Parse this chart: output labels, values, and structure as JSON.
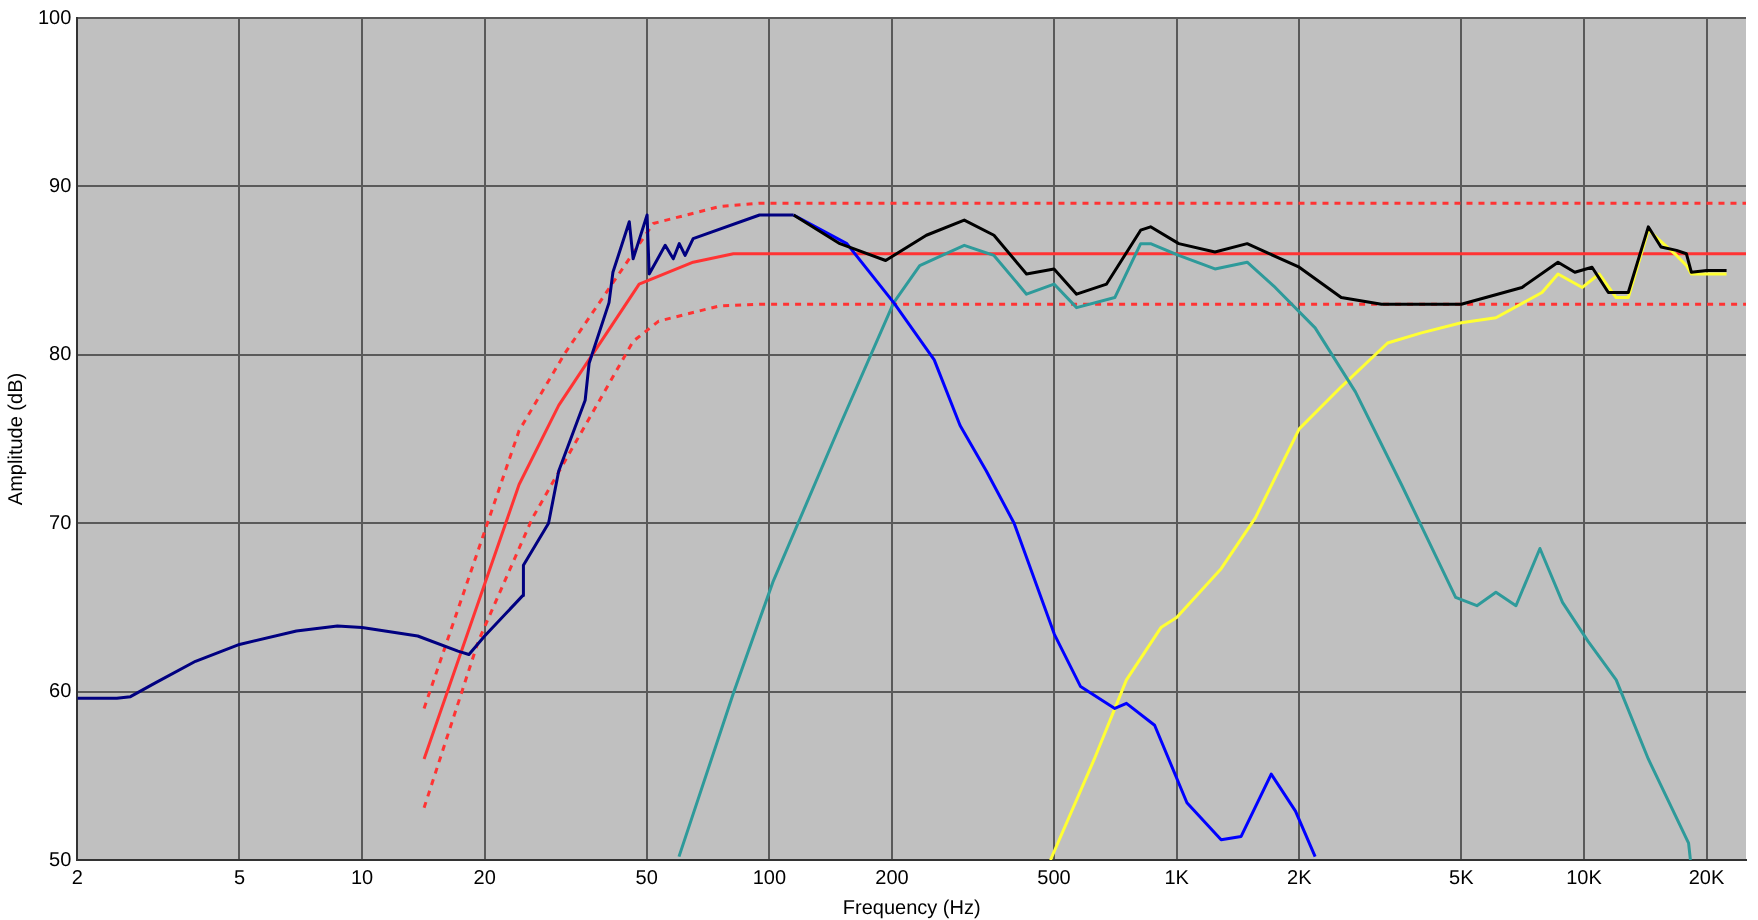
{
  "chart_data": {
    "type": "line",
    "xlabel": "Frequency (Hz)",
    "ylabel": "Amplitude (dB)",
    "log": "x",
    "grid": true,
    "marker": "none",
    "xlim": [
      2,
      25000
    ],
    "ylim": [
      50,
      100
    ],
    "xticks": [
      2,
      5,
      10,
      20,
      50,
      100,
      200,
      500,
      {
        "value": 1000,
        "label": "1K"
      },
      {
        "value": 2000,
        "label": "2K"
      },
      {
        "value": 5000,
        "label": "5K"
      },
      {
        "value": 10000,
        "label": "10K"
      },
      {
        "value": 20000,
        "label": "20K"
      }
    ],
    "yticks": [
      50,
      60,
      70,
      80,
      90,
      100
    ],
    "series": [
      {
        "color": "#000080",
        "line_style": "solid",
        "x": [
          2,
          2.5,
          2.7,
          3.1,
          3.9,
          5,
          6.9,
          8.7,
          10,
          13.7,
          17.2,
          18.3,
          20,
          24.8,
          24.9,
          28.7,
          30.4,
          35.3,
          36.1,
          40.4,
          41.3,
          45.3,
          46.3,
          50.1,
          50.7,
          55.5,
          58.1,
          60.1,
          62.1,
          65,
          94.6,
          114.7
        ],
        "values": [
          59.6,
          59.6,
          59.7,
          60.5,
          61.8,
          62.8,
          63.6,
          63.9,
          63.8,
          63.3,
          62.4,
          62.2,
          63.3,
          65.7,
          67.5,
          70.0,
          73.1,
          77.3,
          79.5,
          83.1,
          84.9,
          87.9,
          85.7,
          88.3,
          84.8,
          86.5,
          85.7,
          86.6,
          85.9,
          86.9,
          88.3,
          88.3
        ]
      },
      {
        "color": "#000000",
        "line_style": "solid",
        "x": [
          114.7,
          149,
          193,
          243,
          301,
          356,
          428,
          500,
          568,
          673,
          816,
          863,
          1012,
          1242,
          1490,
          2000,
          2536,
          3184,
          5000,
          7046,
          8636,
          9500,
          10470,
          11480,
          12850,
          14390,
          15460,
          16880,
          17850,
          18360,
          20000,
          22400
        ],
        "values": [
          88.3,
          86.6,
          85.6,
          87.1,
          88.0,
          87.1,
          84.8,
          85.1,
          83.6,
          84.2,
          87.4,
          87.6,
          86.6,
          86.1,
          86.6,
          85.2,
          83.4,
          83.0,
          83.0,
          84.0,
          85.5,
          84.9,
          85.2,
          83.7,
          83.7,
          87.6,
          86.4,
          86.2,
          86.0,
          84.9,
          85.0,
          85.0
        ]
      },
      {
        "color": "#0000ff",
        "line_style": "solid",
        "x": [
          114.7,
          155,
          202,
          254,
          294,
          341,
          399,
          501,
          581,
          705,
          753,
          883,
          1060,
          1286,
          1440,
          1707,
          1958,
          2188
        ],
        "values": [
          88.3,
          86.6,
          83.1,
          79.7,
          75.8,
          73.1,
          70.0,
          63.4,
          60.3,
          59.0,
          59.3,
          58.0,
          53.4,
          51.2,
          51.4,
          55.1,
          52.9,
          50.2
        ]
      },
      {
        "color": "#2e9a9a",
        "line_style": "solid",
        "x": [
          60,
          81.6,
          102,
          149,
          202,
          234,
          301,
          356,
          428,
          500,
          568,
          705,
          816,
          863,
          1012,
          1242,
          1490,
          1746,
          2188,
          2748,
          3564,
          4842,
          5460,
          6080,
          6810,
          7798,
          8860,
          10230,
          12000,
          14390,
          18070,
          18260
        ],
        "values": [
          50.2,
          59.9,
          66.5,
          75.8,
          83.1,
          85.3,
          86.5,
          85.9,
          83.6,
          84.2,
          82.8,
          83.4,
          86.6,
          86.6,
          85.9,
          85.1,
          85.5,
          84.0,
          81.6,
          77.8,
          72.3,
          65.6,
          65.1,
          65.9,
          65.1,
          68.5,
          65.3,
          63.0,
          60.7,
          56.0,
          51.0,
          50.0
        ]
      },
      {
        "color": "#ffff33",
        "line_style": "solid",
        "x": [
          490,
          628,
          753,
          915,
          1000,
          1286,
          1559,
          2000,
          2536,
          3296,
          3990,
          5000,
          6080,
          7890,
          8636,
          9910,
          10900,
          12000,
          12850,
          14390,
          16880,
          17850,
          18360,
          22400
        ],
        "values": [
          50.0,
          56.0,
          60.7,
          63.8,
          64.4,
          67.3,
          70.3,
          75.6,
          78.1,
          80.7,
          81.3,
          81.9,
          82.2,
          83.7,
          84.8,
          84.0,
          84.8,
          83.4,
          83.4,
          87.4,
          85.9,
          85.3,
          84.8,
          84.8
        ]
      },
      {
        "color": "#ff3333",
        "line_style": "solid",
        "x": [
          14.2,
          19.3,
          24.3,
          30.4,
          47.9,
          65,
          81.6,
          25000
        ],
        "values": [
          56.0,
          65.3,
          72.3,
          77.0,
          84.2,
          85.5,
          86.0,
          86.0
        ]
      },
      {
        "color": "#ff3333",
        "line_style": "dashed",
        "x": [
          14.2,
          24.3,
          31.5,
          51.9,
          75.4,
          94.6,
          25000
        ],
        "values": [
          59.0,
          75.5,
          80.1,
          87.8,
          88.8,
          89.0,
          89.0
        ]
      },
      {
        "color": "#ff3333",
        "line_style": "dashed",
        "x": [
          14.2,
          19.3,
          26.2,
          46.3,
          53.5,
          75.4,
          94.6,
          25000
        ],
        "values": [
          53.1,
          63.0,
          70.3,
          80.8,
          82.0,
          82.9,
          83.0,
          83.0
        ]
      }
    ]
  }
}
